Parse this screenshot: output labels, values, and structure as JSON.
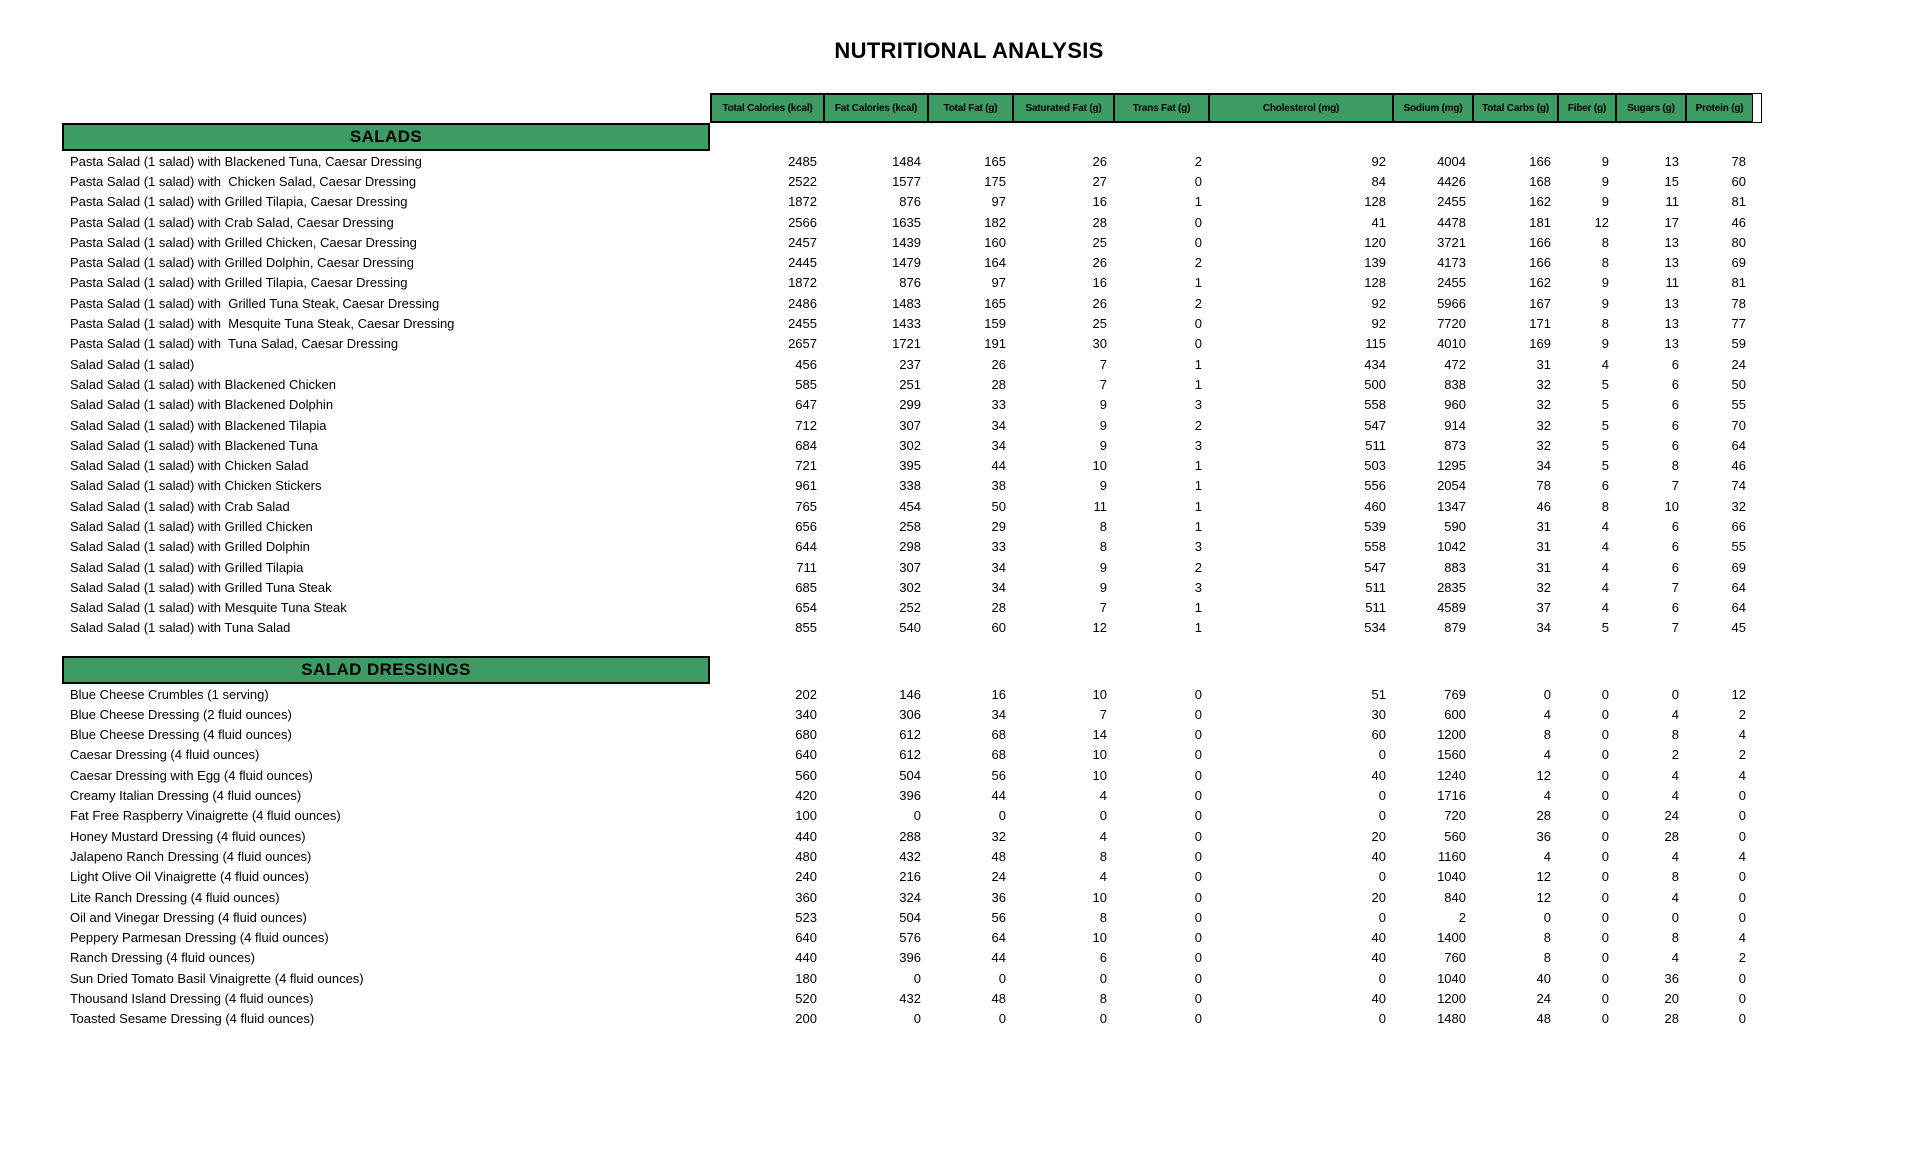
{
  "title": "NUTRITIONAL ANALYSIS",
  "colors": {
    "section_green": "#3E9B63",
    "border": "#000000",
    "text": "#000000",
    "page_background": "#FFFFFF"
  },
  "table": {
    "columns": [
      "Total Calories (kcal)",
      "Fat Calories (kcal)",
      "Total Fat (g)",
      "Saturated Fat (g)",
      "Trans Fat (g)",
      "Cholesterol (mg)",
      "Sodium (mg)",
      "Total Carbs (g)",
      "Fiber (g)",
      "Sugars (g)",
      "Protein (g)"
    ],
    "sections": [
      {
        "name": "SALADS",
        "rows": [
          {
            "item": "Pasta Salad (1 salad) with Blackened Tuna, Caesar Dressing",
            "values": [
              2485,
              1484,
              165,
              26,
              2,
              92,
              4004,
              166,
              9,
              13,
              78
            ]
          },
          {
            "item": "Pasta Salad (1 salad) with  Chicken Salad, Caesar Dressing",
            "values": [
              2522,
              1577,
              175,
              27,
              0,
              84,
              4426,
              168,
              9,
              15,
              60
            ]
          },
          {
            "item": "Pasta Salad (1 salad) with Grilled Tilapia, Caesar Dressing",
            "values": [
              1872,
              876,
              97,
              16,
              1,
              128,
              2455,
              162,
              9,
              11,
              81
            ]
          },
          {
            "item": "Pasta Salad (1 salad) with Crab Salad, Caesar Dressing",
            "values": [
              2566,
              1635,
              182,
              28,
              0,
              41,
              4478,
              181,
              12,
              17,
              46
            ]
          },
          {
            "item": "Pasta Salad (1 salad) with Grilled Chicken, Caesar Dressing",
            "values": [
              2457,
              1439,
              160,
              25,
              0,
              120,
              3721,
              166,
              8,
              13,
              80
            ]
          },
          {
            "item": "Pasta Salad (1 salad) with Grilled Dolphin, Caesar Dressing",
            "values": [
              2445,
              1479,
              164,
              26,
              2,
              139,
              4173,
              166,
              8,
              13,
              69
            ]
          },
          {
            "item": "Pasta Salad (1 salad) with Grilled Tilapia, Caesar Dressing",
            "values": [
              1872,
              876,
              97,
              16,
              1,
              128,
              2455,
              162,
              9,
              11,
              81
            ]
          },
          {
            "item": "Pasta Salad (1 salad) with  Grilled Tuna Steak, Caesar Dressing",
            "values": [
              2486,
              1483,
              165,
              26,
              2,
              92,
              5966,
              167,
              9,
              13,
              78
            ]
          },
          {
            "item": "Pasta Salad (1 salad) with  Mesquite Tuna Steak, Caesar Dressing",
            "values": [
              2455,
              1433,
              159,
              25,
              0,
              92,
              7720,
              171,
              8,
              13,
              77
            ]
          },
          {
            "item": "Pasta Salad (1 salad) with  Tuna Salad, Caesar Dressing",
            "values": [
              2657,
              1721,
              191,
              30,
              0,
              115,
              4010,
              169,
              9,
              13,
              59
            ]
          },
          {
            "item": "Salad Salad (1 salad)",
            "values": [
              456,
              237,
              26,
              7,
              1,
              434,
              472,
              31,
              4,
              6,
              24
            ]
          },
          {
            "item": "Salad Salad (1 salad) with Blackened Chicken",
            "values": [
              585,
              251,
              28,
              7,
              1,
              500,
              838,
              32,
              5,
              6,
              50
            ]
          },
          {
            "item": "Salad Salad (1 salad) with Blackened Dolphin",
            "values": [
              647,
              299,
              33,
              9,
              3,
              558,
              960,
              32,
              5,
              6,
              55
            ]
          },
          {
            "item": "Salad Salad (1 salad) with Blackened Tilapia",
            "values": [
              712,
              307,
              34,
              9,
              2,
              547,
              914,
              32,
              5,
              6,
              70
            ]
          },
          {
            "item": "Salad Salad (1 salad) with Blackened Tuna",
            "values": [
              684,
              302,
              34,
              9,
              3,
              511,
              873,
              32,
              5,
              6,
              64
            ]
          },
          {
            "item": "Salad Salad (1 salad) with Chicken Salad",
            "values": [
              721,
              395,
              44,
              10,
              1,
              503,
              1295,
              34,
              5,
              8,
              46
            ]
          },
          {
            "item": "Salad Salad (1 salad) with Chicken Stickers",
            "values": [
              961,
              338,
              38,
              9,
              1,
              556,
              2054,
              78,
              6,
              7,
              74
            ]
          },
          {
            "item": "Salad Salad (1 salad) with Crab Salad",
            "values": [
              765,
              454,
              50,
              11,
              1,
              460,
              1347,
              46,
              8,
              10,
              32
            ]
          },
          {
            "item": "Salad Salad (1 salad) with Grilled Chicken",
            "values": [
              656,
              258,
              29,
              8,
              1,
              539,
              590,
              31,
              4,
              6,
              66
            ]
          },
          {
            "item": "Salad Salad (1 salad) with Grilled Dolphin",
            "values": [
              644,
              298,
              33,
              8,
              3,
              558,
              1042,
              31,
              4,
              6,
              55
            ]
          },
          {
            "item": "Salad Salad (1 salad) with Grilled Tilapia",
            "values": [
              711,
              307,
              34,
              9,
              2,
              547,
              883,
              31,
              4,
              6,
              69
            ]
          },
          {
            "item": "Salad Salad (1 salad) with Grilled Tuna Steak",
            "values": [
              685,
              302,
              34,
              9,
              3,
              511,
              2835,
              32,
              4,
              7,
              64
            ]
          },
          {
            "item": "Salad Salad (1 salad) with Mesquite Tuna Steak",
            "values": [
              654,
              252,
              28,
              7,
              1,
              511,
              4589,
              37,
              4,
              6,
              64
            ]
          },
          {
            "item": "Salad Salad (1 salad) with Tuna Salad",
            "values": [
              855,
              540,
              60,
              12,
              1,
              534,
              879,
              34,
              5,
              7,
              45
            ]
          }
        ]
      },
      {
        "name": "SALAD DRESSINGS",
        "rows": [
          {
            "item": "Blue Cheese Crumbles (1 serving)",
            "values": [
              202,
              146,
              16,
              10,
              0,
              51,
              769,
              0,
              0,
              0,
              12
            ]
          },
          {
            "item": "Blue Cheese Dressing (2 fluid ounces)",
            "values": [
              340,
              306,
              34,
              7,
              0,
              30,
              600,
              4,
              0,
              4,
              2
            ]
          },
          {
            "item": "Blue Cheese Dressing (4 fluid ounces)",
            "values": [
              680,
              612,
              68,
              14,
              0,
              60,
              1200,
              8,
              0,
              8,
              4
            ]
          },
          {
            "item": "Caesar Dressing (4 fluid ounces)",
            "values": [
              640,
              612,
              68,
              10,
              0,
              0,
              1560,
              4,
              0,
              2,
              2
            ]
          },
          {
            "item": "Caesar Dressing with Egg (4 fluid ounces)",
            "values": [
              560,
              504,
              56,
              10,
              0,
              40,
              1240,
              12,
              0,
              4,
              4
            ]
          },
          {
            "item": "Creamy Italian Dressing (4 fluid ounces)",
            "values": [
              420,
              396,
              44,
              4,
              0,
              0,
              1716,
              4,
              0,
              4,
              0
            ]
          },
          {
            "item": "Fat Free Raspberry Vinaigrette (4 fluid ounces)",
            "values": [
              100,
              0,
              0,
              0,
              0,
              0,
              720,
              28,
              0,
              24,
              0
            ]
          },
          {
            "item": "Honey Mustard Dressing (4 fluid ounces)",
            "values": [
              440,
              288,
              32,
              4,
              0,
              20,
              560,
              36,
              0,
              28,
              0
            ]
          },
          {
            "item": "Jalapeno Ranch Dressing (4 fluid ounces)",
            "values": [
              480,
              432,
              48,
              8,
              0,
              40,
              1160,
              4,
              0,
              4,
              4
            ]
          },
          {
            "item": "Light Olive Oil Vinaigrette (4 fluid ounces)",
            "values": [
              240,
              216,
              24,
              4,
              0,
              0,
              1040,
              12,
              0,
              8,
              0
            ]
          },
          {
            "item": "Lite Ranch Dressing (4 fluid ounces)",
            "values": [
              360,
              324,
              36,
              10,
              0,
              20,
              840,
              12,
              0,
              4,
              0
            ]
          },
          {
            "item": "Oil and Vinegar Dressing (4 fluid ounces)",
            "values": [
              523,
              504,
              56,
              8,
              0,
              0,
              2,
              0,
              0,
              0,
              0
            ]
          },
          {
            "item": "Peppery Parmesan Dressing (4 fluid ounces)",
            "values": [
              640,
              576,
              64,
              10,
              0,
              40,
              1400,
              8,
              0,
              8,
              4
            ]
          },
          {
            "item": "Ranch Dressing (4 fluid ounces)",
            "values": [
              440,
              396,
              44,
              6,
              0,
              40,
              760,
              8,
              0,
              4,
              2
            ]
          },
          {
            "item": "Sun Dried Tomato Basil Vinaigrette (4 fluid ounces)",
            "values": [
              180,
              0,
              0,
              0,
              0,
              0,
              1040,
              40,
              0,
              36,
              0
            ]
          },
          {
            "item": "Thousand Island Dressing (4 fluid ounces)",
            "values": [
              520,
              432,
              48,
              8,
              0,
              40,
              1200,
              24,
              0,
              20,
              0
            ]
          },
          {
            "item": "Toasted Sesame Dressing (4 fluid ounces)",
            "values": [
              200,
              0,
              0,
              0,
              0,
              0,
              1480,
              48,
              0,
              28,
              0
            ]
          }
        ]
      }
    ]
  }
}
